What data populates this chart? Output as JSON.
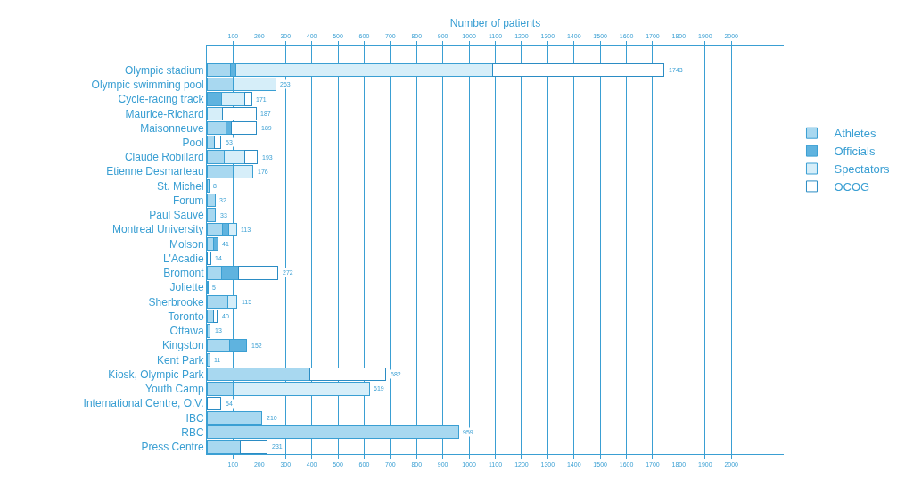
{
  "chart_data": {
    "type": "bar",
    "orientation": "horizontal",
    "stacked": true,
    "xlabel": "Number of patients",
    "categories": [
      "Olympic stadium",
      "Olympic swimming pool",
      "Cycle-racing track",
      "Maurice-Richard",
      "Maisonneuve",
      "Pool",
      "Claude Robillard",
      "Etienne Desmarteau",
      "St. Michel",
      "Forum",
      "Paul Sauvé",
      "Montreal University",
      "Molson",
      "L'Acadie",
      "Bromont",
      "Joliette",
      "Sherbrooke",
      "Toronto",
      "Ottawa",
      "Kingston",
      "Kent Park",
      "Kiosk, Olympic Park",
      "Youth Camp",
      "International Centre, O.V.",
      "IBC",
      "RBC",
      "Press Centre"
    ],
    "series": [
      {
        "name": "Athletes",
        "color": "#a8d8f0",
        "values": [
          90,
          100,
          null,
          null,
          73,
          30,
          65,
          100,
          8,
          32,
          33,
          58,
          25,
          null,
          55,
          5,
          80,
          25,
          13,
          85,
          11,
          393,
          100,
          null,
          210,
          959,
          128
        ]
      },
      {
        "name": "Officials",
        "color": "#5fb3df",
        "values": [
          20,
          null,
          55,
          null,
          20,
          null,
          null,
          null,
          null,
          null,
          null,
          25,
          16,
          null,
          67,
          null,
          null,
          null,
          null,
          67,
          null,
          null,
          null,
          null,
          null,
          null,
          null
        ]
      },
      {
        "name": "Spectators",
        "color": "#d6eef9",
        "values": [
          980,
          163,
          90,
          60,
          null,
          null,
          80,
          76,
          null,
          null,
          null,
          30,
          null,
          null,
          null,
          null,
          35,
          null,
          null,
          null,
          null,
          null,
          519,
          null,
          null,
          null,
          null
        ]
      },
      {
        "name": "OCOG",
        "color": "#2b8cc4",
        "values": [
          653,
          null,
          26,
          127,
          96,
          23,
          48,
          null,
          null,
          null,
          null,
          null,
          null,
          14,
          150,
          null,
          null,
          15,
          null,
          null,
          null,
          289,
          null,
          54,
          null,
          null,
          103
        ]
      }
    ],
    "totals": [
      "1743",
      "263",
      "171",
      "187",
      "189",
      "53",
      "193",
      "176",
      "8",
      "32",
      "33",
      "113",
      "41",
      "14",
      "272",
      "5",
      "115",
      "40",
      "13",
      "152",
      "11",
      "682",
      "619",
      "54",
      "210",
      "959",
      "231"
    ],
    "xlim": [
      0,
      2200
    ],
    "xticks": [
      100,
      200,
      300,
      400,
      500,
      600,
      700,
      800,
      900,
      1000,
      1100,
      1200,
      1300,
      1400,
      1500,
      1600,
      1700,
      1800,
      1900,
      2000
    ],
    "x2lim": [
      0,
      2200
    ],
    "x2ticks": [
      100,
      200,
      300,
      400,
      500,
      600,
      700,
      800,
      900,
      1000,
      1100,
      1200,
      1300,
      1400,
      1500,
      1600,
      1700,
      1800,
      1900,
      2000
    ],
    "grid": "x",
    "legend": "right"
  }
}
